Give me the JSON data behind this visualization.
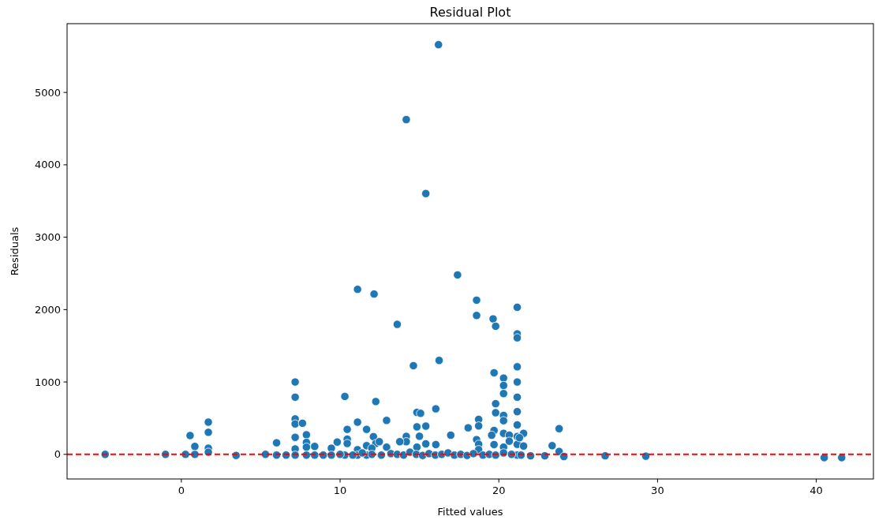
{
  "chart_data": {
    "type": "scatter",
    "title": "Residual Plot",
    "xlabel": "Fitted values",
    "ylabel": "Residuals",
    "xlim": [
      -7.2,
      43.6
    ],
    "ylim": [
      -340,
      5950
    ],
    "xticks": [
      0,
      10,
      20,
      30,
      40
    ],
    "yticks": [
      0,
      1000,
      2000,
      3000,
      4000,
      5000
    ],
    "grid": false,
    "marker": "circle",
    "ref_lines": [
      {
        "axis": "y",
        "value": 0,
        "color": "#ff0000",
        "line_style": "dashed"
      }
    ],
    "series": [
      {
        "color": "#1f77b4",
        "x": [
          -4.8,
          -1.0,
          0.26,
          0.85,
          0.55,
          0.85,
          1.7,
          1.7,
          1.7,
          1.7,
          3.45,
          5.3,
          6.0,
          6.0,
          6.6,
          7.17,
          7.17,
          7.17,
          7.17,
          7.17,
          7.17,
          7.17,
          7.63,
          7.88,
          7.88,
          7.88,
          7.88,
          8.4,
          8.4,
          8.94,
          9.45,
          9.82,
          9.45,
          10.3,
          10.3,
          10.45,
          10.45,
          10.45,
          11.1,
          11.1,
          11.1,
          11.1,
          11.67,
          11.67,
          11.67,
          12.14,
          12.25,
          12.1,
          12.25,
          12.47,
          12.0,
          17.4,
          13.6,
          14.62,
          16.24,
          18.6,
          18.6,
          19.64,
          19.8,
          21.16,
          21.16,
          21.16,
          21.16,
          21.16,
          21.16,
          21.16,
          21.16,
          21.16,
          21.16,
          21.16,
          21.16,
          19.7,
          20.3,
          20.3,
          20.3,
          19.8,
          19.8,
          20.3,
          20.3,
          19.7,
          19.55,
          20.3,
          20.66,
          20.66,
          21.56,
          21.3,
          21.56,
          19.7,
          20.3,
          22.0,
          22.9,
          23.36,
          23.8,
          23.8,
          24.1,
          18.73,
          18.73,
          18.6,
          18.07,
          18.73,
          18.73,
          16.97,
          16.03,
          14.84,
          15.07,
          14.84,
          15.4,
          15.0,
          14.17,
          14.17,
          13.76,
          12.93,
          15.4,
          16.03,
          14.84,
          12.93,
          16.2,
          14.17,
          15.4,
          26.7,
          29.26,
          40.5,
          41.6,
          10.0,
          10.8,
          11.4,
          12.0,
          12.6,
          13.2,
          13.6,
          14.0,
          14.4,
          14.8,
          15.2,
          15.6,
          16.0,
          16.4,
          16.8,
          17.2,
          17.6,
          18.0,
          18.4,
          19.0,
          19.4,
          19.8,
          20.3,
          20.8,
          21.4
        ],
        "values": [
          0,
          0,
          0,
          0,
          260,
          110,
          445,
          305,
          85,
          30,
          -15,
          0,
          160,
          -10,
          -10,
          1000,
          790,
          490,
          420,
          235,
          75,
          -10,
          430,
          270,
          165,
          100,
          -10,
          110,
          -10,
          -10,
          85,
          170,
          -10,
          800,
          -10,
          345,
          210,
          150,
          2280,
          445,
          65,
          -10,
          345,
          120,
          -10,
          2215,
          730,
          245,
          150,
          175,
          85,
          2479,
          1796,
          1225,
          1298,
          2130,
          1919,
          1872,
          1770,
          2032,
          1665,
          1610,
          1210,
          1000,
          790,
          590,
          407,
          247,
          138,
          -10,
          -10,
          1127,
          1054,
          952,
          840,
          700,
          575,
          538,
          465,
          330,
          265,
          290,
          265,
          182,
          290,
          230,
          115,
          135,
          100,
          -20,
          -20,
          120,
          355,
          40,
          -30,
          483,
          393,
          204,
          367,
          140,
          65,
          265,
          629,
          580,
          567,
          380,
          390,
          250,
          248,
          175,
          175,
          469,
          145,
          135,
          100,
          100,
          5660,
          4625,
          3603,
          -20,
          -25,
          -45,
          -45,
          0,
          -10,
          20,
          0,
          -10,
          10,
          0,
          -10,
          30,
          0,
          -15,
          10,
          -10,
          0,
          20,
          -10,
          0,
          -15,
          10,
          -10,
          0,
          -10,
          20,
          0,
          -10
        ]
      }
    ]
  }
}
